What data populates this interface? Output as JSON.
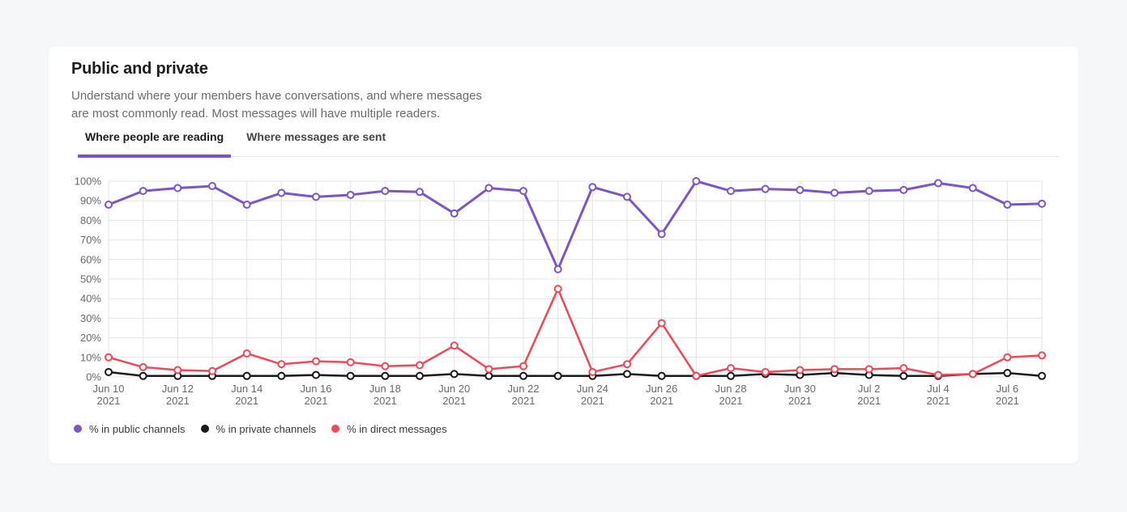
{
  "header": {
    "title": "Public and private",
    "description_line1": "Understand where your members have conversations, and where messages",
    "description_line2": "are most commonly read. Most messages will have multiple readers."
  },
  "tabs": [
    {
      "label": "Where people are reading",
      "active": true
    },
    {
      "label": "Where messages are sent",
      "active": false
    }
  ],
  "colors": {
    "accent_purple": "#7C52C7",
    "page_background": "#F6F7F9",
    "card_background": "#FFFFFF",
    "gridline": "#E4E4E6",
    "axis_label": "#6B6670",
    "series_public": "#7C55C8",
    "series_private": "#1A1A1A",
    "series_direct": "#F04856"
  },
  "chart_data": {
    "type": "line",
    "title": "",
    "xlabel": "",
    "ylabel": "",
    "x": [
      "Jun 10",
      "Jun 11",
      "Jun 12",
      "Jun 13",
      "Jun 14",
      "Jun 15",
      "Jun 16",
      "Jun 17",
      "Jun 18",
      "Jun 19",
      "Jun 20",
      "Jun 21",
      "Jun 22",
      "Jun 23",
      "Jun 24",
      "Jun 25",
      "Jun 26",
      "Jun 27",
      "Jun 28",
      "Jun 29",
      "Jun 30",
      "Jul 1",
      "Jul 2",
      "Jul 3",
      "Jul 4",
      "Jul 5",
      "Jul 6",
      "Jul 7"
    ],
    "year_label": "2021",
    "x_tick_every": 2,
    "ylim": [
      0,
      100
    ],
    "ytick_step": 10,
    "ytick_suffix": "%",
    "grid": true,
    "legend_position": "bottom",
    "series": [
      {
        "name": "% in public channels",
        "color": "#7C55C8",
        "values": [
          88,
          95,
          96.5,
          97.5,
          88,
          94,
          92,
          93,
          95,
          94.5,
          83.5,
          96.5,
          95,
          55,
          97,
          92,
          73,
          100,
          95,
          96,
          95.5,
          94,
          95,
          95.5,
          99,
          96.5,
          88,
          88.5
        ]
      },
      {
        "name": "% in private channels",
        "color": "#1A1A1A",
        "values": [
          2.5,
          0.5,
          0.5,
          0.5,
          0.5,
          0.5,
          1,
          0.5,
          0.5,
          0.5,
          1.5,
          0.5,
          0.5,
          0.5,
          0.5,
          1.5,
          0.5,
          0.5,
          0.5,
          1.5,
          1,
          2,
          1,
          0.5,
          0.5,
          1.5,
          2,
          0.5
        ]
      },
      {
        "name": "% in direct messages",
        "color": "#F04856",
        "values": [
          10,
          5,
          3.5,
          3,
          12,
          6.5,
          8,
          7.5,
          5.5,
          6,
          16,
          4,
          5.5,
          45,
          2.5,
          6.5,
          27.5,
          0.5,
          4.5,
          2.5,
          3.5,
          4,
          4,
          4.5,
          1,
          1.5,
          10,
          11
        ]
      }
    ]
  }
}
